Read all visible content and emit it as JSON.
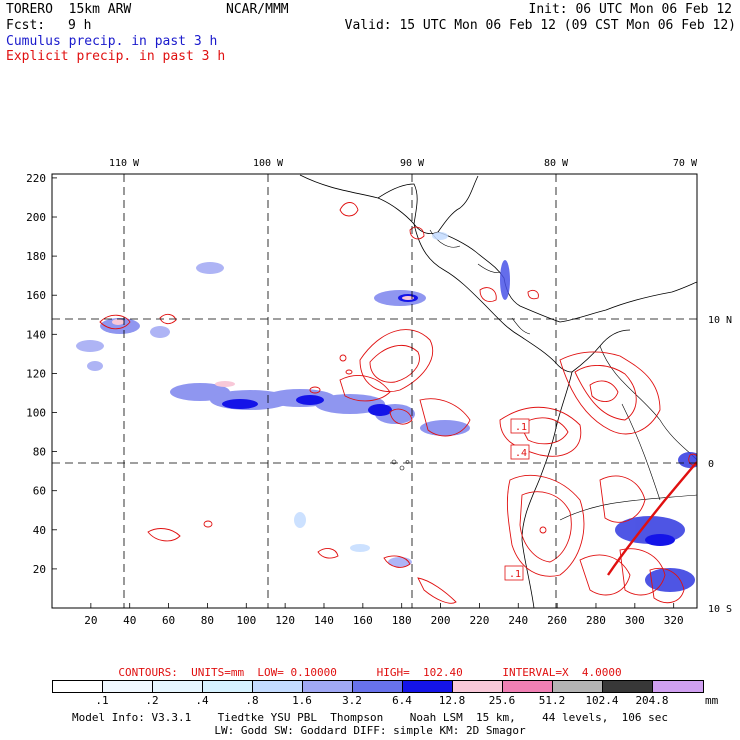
{
  "header": {
    "model_name": "TORERO  15km ARW",
    "org": "NCAR/MMM",
    "init": "Init: 06 UTC Mon 06 Feb 12",
    "fcst_label": "Fcst:",
    "fcst_value": "9 h",
    "valid": "Valid: 15 UTC Mon 06 Feb 12 (09 CST Mon 06 Feb 12)",
    "legend_cumulus": "Cumulus precip. in past 3 h",
    "legend_explicit": "Explicit precip. in past 3 h"
  },
  "axes": {
    "x_ticks": [
      "20",
      "40",
      "60",
      "80",
      "100",
      "120",
      "140",
      "160",
      "180",
      "200",
      "220",
      "240",
      "260",
      "280",
      "300",
      "320"
    ],
    "y_ticks": [
      "220",
      "200",
      "180",
      "160",
      "140",
      "120",
      "100",
      "80",
      "60",
      "40",
      "20"
    ],
    "lon_labels": [
      "110 W",
      "100 W",
      "90 W",
      "80 W",
      "70 W"
    ],
    "lat_labels": [
      "10 N",
      "0",
      "10 S"
    ]
  },
  "map_labels": [
    ".1",
    ".4",
    ".1"
  ],
  "contours_line": "CONTOURS:  UNITS=mm  LOW= 0.10000      HIGH=  102.40      INTERVAL=X  4.0000",
  "colorbar": {
    "labels": [
      ".1",
      ".2",
      ".4",
      ".8",
      "1.6",
      "3.2",
      "6.4",
      "12.8",
      "25.6",
      "51.2",
      "102.4",
      "204.8"
    ],
    "unit": "mm",
    "colors": [
      "#ffffff",
      "#f0f8ff",
      "#e6f6ff",
      "#d6f2ff",
      "#c4dcff",
      "#a0a8f4",
      "#6872ec",
      "#1414e8",
      "#f8c8d8",
      "#f080b4",
      "#b4b4b4",
      "#383838",
      "#d0a0f0"
    ]
  },
  "model_info": {
    "line1": "Model Info: V3.3.1    Tiedtke YSU PBL  Thompson    Noah LSM  15 km,    44 levels,  106 sec",
    "line2": "LW: Godd SW: Goddard DIFF: simple KM: 2D Smagor"
  }
}
